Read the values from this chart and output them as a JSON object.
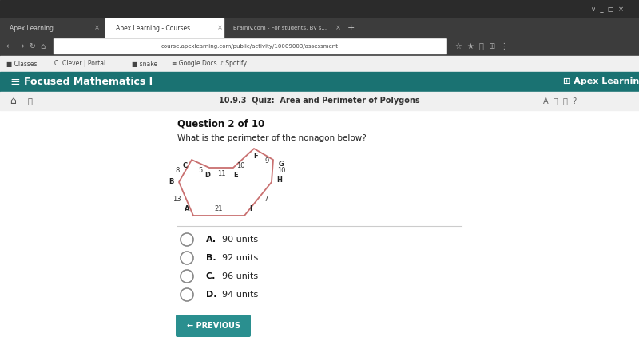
{
  "bg_color": "#ffffff",
  "title_text": "Focused Mathematics I",
  "quiz_label": "10.9.3  Quiz:  Area and Perimeter of Polygons",
  "question_header": "Question 2 of 10",
  "question_text": "What is the perimeter of the nonagon below?",
  "polygon_color": "#c97070",
  "vertex_labels": [
    "A",
    "B",
    "C",
    "D",
    "E",
    "F",
    "G",
    "H",
    "I"
  ],
  "answer_options": [
    {
      "label": "A.",
      "text": "90 units"
    },
    {
      "label": "B.",
      "text": "92 units"
    },
    {
      "label": "C.",
      "text": "96 units"
    },
    {
      "label": "D.",
      "text": "94 units"
    }
  ],
  "button_color": "#2a8f8f",
  "button_text": "← PREVIOUS",
  "apex_learning_logo": "Apex Learning",
  "browser_dark": "#2b2b2b",
  "tab_dark": "#3a3a3a",
  "teal_nav": "#1a7272",
  "subnav_color": "#efefef",
  "tab_active_color": "#ffffff"
}
